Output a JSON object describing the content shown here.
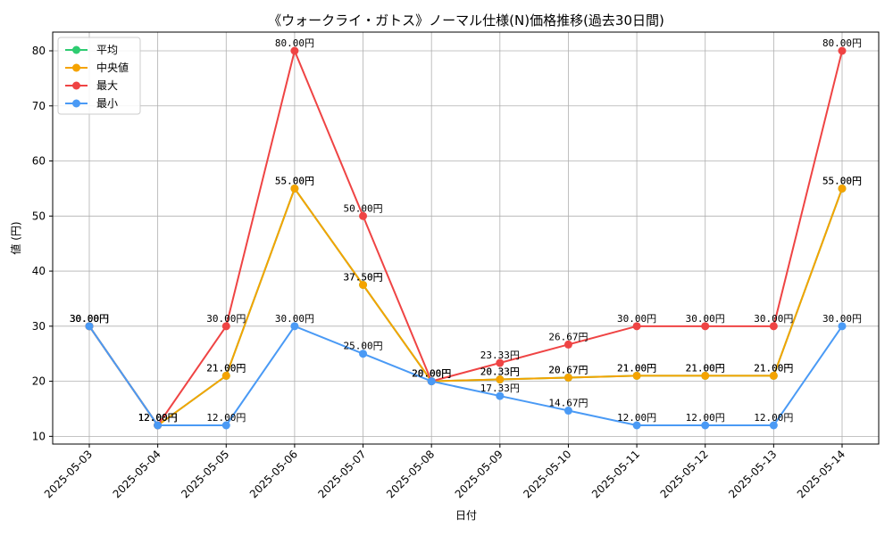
{
  "chart_data": {
    "type": "line",
    "title": "《ウォークライ・ガトス》ノーマル仕様(N)価格推移(過去30日間)",
    "xlabel": "日付",
    "ylabel": "値 (円)",
    "categories": [
      "2025-05-03",
      "2025-05-04",
      "2025-05-05",
      "2025-05-06",
      "2025-05-07",
      "2025-05-08",
      "2025-05-09",
      "2025-05-10",
      "2025-05-11",
      "2025-05-12",
      "2025-05-13",
      "2025-05-14"
    ],
    "ylim": [
      8.6,
      83.4
    ],
    "yticks": [
      10,
      20,
      30,
      40,
      50,
      60,
      70,
      80
    ],
    "grid": true,
    "legend_position": "top-left",
    "series": [
      {
        "name": "平均",
        "color": "#2ecc71",
        "values": [
          30,
          12,
          21,
          55,
          37.5,
          20,
          20.33,
          20.67,
          21,
          21,
          21,
          55
        ],
        "labels": [
          "30.00円",
          "12.00円",
          "21.00円",
          "55.00円",
          "37.50円",
          "20.00円",
          "20.33円",
          "20.67円",
          "21.00円",
          "21.00円",
          "21.00円",
          "55.00円"
        ]
      },
      {
        "name": "中央値",
        "color": "#f5a300",
        "values": [
          30,
          12,
          21,
          55,
          37.5,
          20,
          20.33,
          20.67,
          21,
          21,
          21,
          55
        ],
        "labels": [
          "30.00円",
          "12.00円",
          "21.00円",
          "55.00円",
          "37.50円",
          "20.00円",
          "20.33円",
          "20.67円",
          "21.00円",
          "21.00円",
          "21.00円",
          "55.00円"
        ]
      },
      {
        "name": "最大",
        "color": "#ef4444",
        "values": [
          30,
          12,
          30,
          80,
          50,
          20,
          23.33,
          26.67,
          30,
          30,
          30,
          80
        ],
        "labels": [
          "30.00円",
          "12.00円",
          "30.00円",
          "80.00円",
          "50.00円",
          "20.00円",
          "23.33円",
          "26.67円",
          "30.00円",
          "30.00円",
          "30.00円",
          "80.00円"
        ]
      },
      {
        "name": "最小",
        "color": "#4a9af5",
        "values": [
          30,
          12,
          12,
          30,
          25,
          20,
          17.33,
          14.67,
          12,
          12,
          12,
          30
        ],
        "labels": [
          "30.00円",
          "12.00円",
          "12.00円",
          "30.00円",
          "25.00円",
          "20.00円",
          "17.33円",
          "14.67円",
          "12.00円",
          "12.00円",
          "12.00円",
          "30.00円"
        ]
      }
    ]
  }
}
